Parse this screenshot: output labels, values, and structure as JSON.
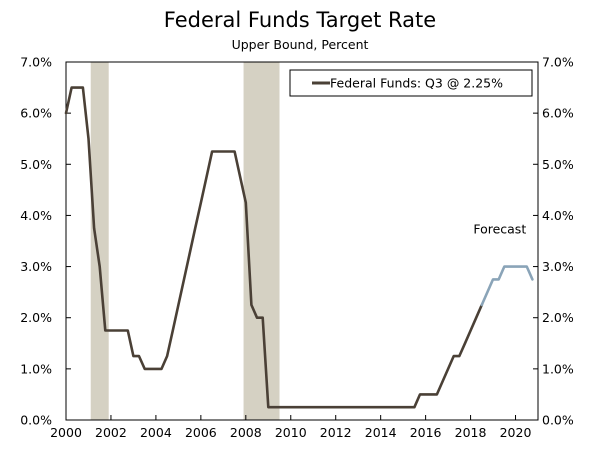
{
  "chart_data": {
    "type": "line",
    "title": "Federal Funds Target Rate",
    "subtitle": "Upper Bound, Percent",
    "xlabel": "",
    "ylabel": "",
    "xlim": [
      2000,
      2021
    ],
    "ylim": [
      0,
      7
    ],
    "x_ticks": [
      2000,
      2002,
      2004,
      2006,
      2008,
      2010,
      2012,
      2014,
      2016,
      2018,
      2020
    ],
    "x_tick_labels": [
      "2000",
      "2002",
      "2004",
      "2006",
      "2008",
      "2010",
      "2012",
      "2014",
      "2016",
      "2018",
      "2020"
    ],
    "y_ticks": [
      0,
      1,
      2,
      3,
      4,
      5,
      6,
      7
    ],
    "y_tick_labels_left": [
      "0.0%",
      "1.0%",
      "2.0%",
      "3.0%",
      "4.0%",
      "5.0%",
      "6.0%",
      "7.0%"
    ],
    "y_tick_labels_right": [
      "0.0%",
      "1.0%",
      "2.0%",
      "3.0%",
      "4.0%",
      "5.0%",
      "6.0%",
      "7.0%"
    ],
    "grid": false,
    "legend": {
      "position": "top-right",
      "entries": [
        "Federal Funds: Q3 @ 2.25%"
      ]
    },
    "annotations": [
      {
        "text": "Forecast",
        "x": 2019.3,
        "y": 3.65
      }
    ],
    "recession_bands": [
      {
        "start": 2001.1,
        "end": 2001.9
      },
      {
        "start": 2007.9,
        "end": 2009.5
      }
    ],
    "colors": {
      "actual": "#4a4036",
      "forecast": "#8aa4b8",
      "recession": "#d5d1c3"
    },
    "series": [
      {
        "name": "Federal Funds: Q3 @ 2.25%",
        "style": "actual",
        "points": [
          [
            2000.0,
            6.0
          ],
          [
            2000.25,
            6.5
          ],
          [
            2000.5,
            6.5
          ],
          [
            2000.75,
            6.5
          ],
          [
            2001.0,
            5.5
          ],
          [
            2001.25,
            3.75
          ],
          [
            2001.5,
            3.0
          ],
          [
            2001.75,
            1.75
          ],
          [
            2002.0,
            1.75
          ],
          [
            2002.25,
            1.75
          ],
          [
            2002.5,
            1.75
          ],
          [
            2002.75,
            1.75
          ],
          [
            2003.0,
            1.25
          ],
          [
            2003.25,
            1.25
          ],
          [
            2003.5,
            1.0
          ],
          [
            2003.75,
            1.0
          ],
          [
            2004.0,
            1.0
          ],
          [
            2004.25,
            1.0
          ],
          [
            2004.5,
            1.25
          ],
          [
            2004.75,
            1.75
          ],
          [
            2005.0,
            2.25
          ],
          [
            2005.25,
            2.75
          ],
          [
            2005.5,
            3.25
          ],
          [
            2005.75,
            3.75
          ],
          [
            2006.0,
            4.25
          ],
          [
            2006.25,
            4.75
          ],
          [
            2006.5,
            5.25
          ],
          [
            2006.75,
            5.25
          ],
          [
            2007.0,
            5.25
          ],
          [
            2007.25,
            5.25
          ],
          [
            2007.5,
            5.25
          ],
          [
            2007.75,
            4.75
          ],
          [
            2008.0,
            4.25
          ],
          [
            2008.25,
            2.25
          ],
          [
            2008.5,
            2.0
          ],
          [
            2008.75,
            2.0
          ],
          [
            2009.0,
            0.25
          ],
          [
            2009.5,
            0.25
          ],
          [
            2010.0,
            0.25
          ],
          [
            2011.0,
            0.25
          ],
          [
            2012.0,
            0.25
          ],
          [
            2013.0,
            0.25
          ],
          [
            2014.0,
            0.25
          ],
          [
            2015.0,
            0.25
          ],
          [
            2015.5,
            0.25
          ],
          [
            2015.75,
            0.5
          ],
          [
            2016.0,
            0.5
          ],
          [
            2016.5,
            0.5
          ],
          [
            2016.75,
            0.75
          ],
          [
            2017.0,
            1.0
          ],
          [
            2017.25,
            1.25
          ],
          [
            2017.5,
            1.25
          ],
          [
            2017.75,
            1.5
          ],
          [
            2018.0,
            1.75
          ],
          [
            2018.25,
            2.0
          ],
          [
            2018.5,
            2.25
          ]
        ]
      },
      {
        "name": "",
        "style": "forecast",
        "points": [
          [
            2018.5,
            2.25
          ],
          [
            2018.75,
            2.5
          ],
          [
            2019.0,
            2.75
          ],
          [
            2019.25,
            2.75
          ],
          [
            2019.5,
            3.0
          ],
          [
            2019.75,
            3.0
          ],
          [
            2020.0,
            3.0
          ],
          [
            2020.25,
            3.0
          ],
          [
            2020.5,
            3.0
          ],
          [
            2020.75,
            2.75
          ]
        ]
      }
    ]
  }
}
